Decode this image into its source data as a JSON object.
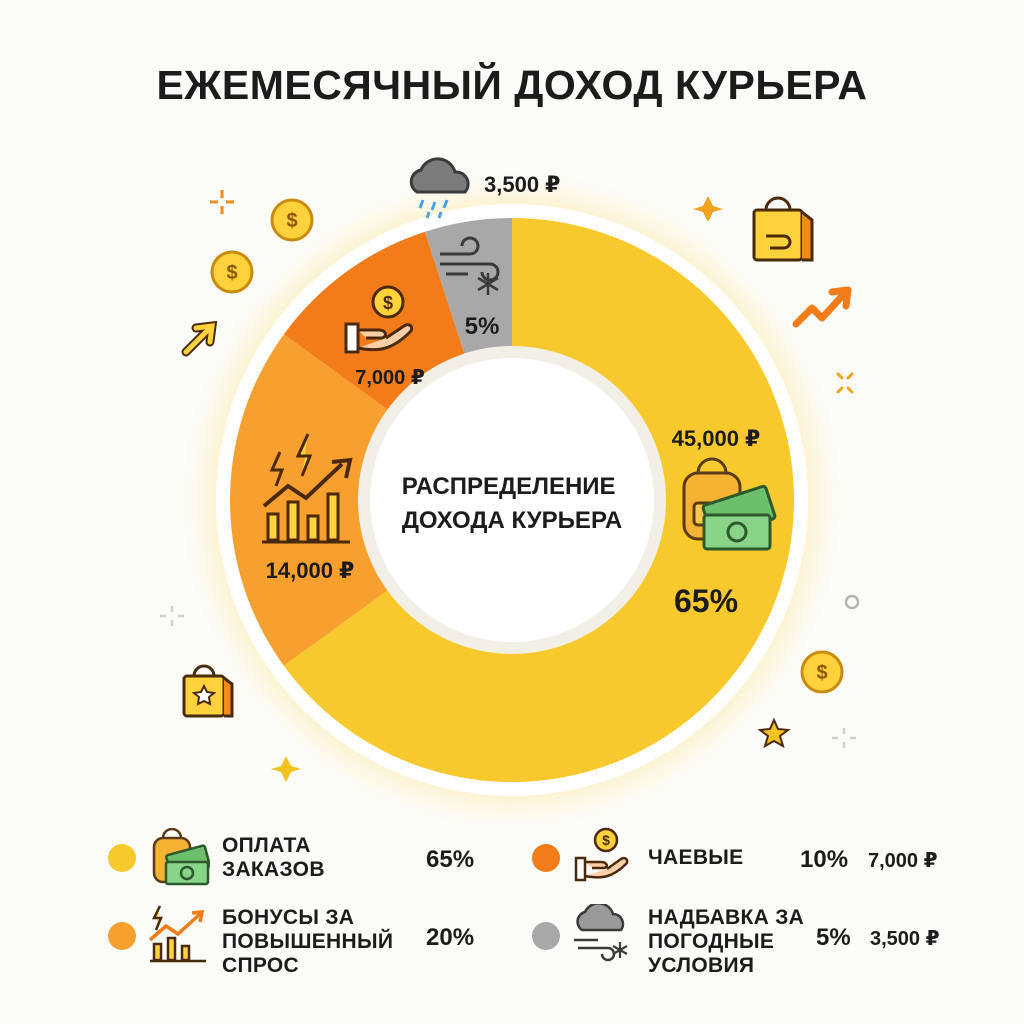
{
  "title": "ЕЖЕМЕСЯЧНЫЙ ДОХОД КУРЬЕРА",
  "chart_data": {
    "type": "pie",
    "variant": "donut",
    "center_label": [
      "РАСПРЕДЕЛЕНИЕ",
      "ДОХОДА КУРЬЕРА"
    ],
    "slices": [
      {
        "key": "orders",
        "percent": 65,
        "amount": "45,000 ₽",
        "percent_label": "65%",
        "color": "#f7c92c",
        "icon": "backpack-money-icon"
      },
      {
        "key": "bonus",
        "percent": 20,
        "amount": "14,000 ₽",
        "color": "#f7a030",
        "icon": "growth-chart-lightning-icon"
      },
      {
        "key": "tips",
        "percent": 10,
        "amount": "7,000 ₽",
        "color": "#f27c1a",
        "icon": "hand-coin-icon"
      },
      {
        "key": "weather",
        "percent": 5,
        "amount": "3,500 ₽",
        "percent_label": "5%",
        "color": "#a8a8a8",
        "icon": "wind-snow-icon"
      }
    ],
    "legend": [
      {
        "label": "ОПЛАТА\nЗАКАЗОВ",
        "percent": "65%",
        "amount": "",
        "color": "#f7c92c",
        "icon": "backpack-money-icon"
      },
      {
        "label": "ЧАЕВЫЕ",
        "percent": "10%",
        "amount": "7,000 ₽",
        "color": "#f27c1a",
        "icon": "hand-coin-icon"
      },
      {
        "label": "БОНУСЫ ЗА\nПОВЫШЕННЫЙ\nСПРОС",
        "percent": "20%",
        "amount": "",
        "color": "#f7a030",
        "icon": "growth-chart-lightning-icon"
      },
      {
        "label": "НАДБАВКА ЗА\nПОГОДНЫЕ\nУСЛОВИЯ",
        "percent": "5%",
        "amount": "3,500 ₽",
        "color": "#a8a8a8",
        "icon": "rain-cloud-snow-icon"
      }
    ],
    "legend_placement": "bottom"
  }
}
